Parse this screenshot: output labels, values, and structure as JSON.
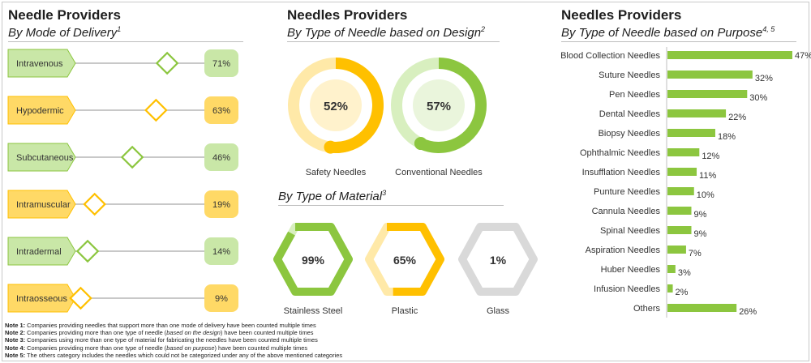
{
  "colors": {
    "green": "#8cc63f",
    "green_light": "#c9e7a7",
    "green_pale": "#d8efbf",
    "green_bg": "#eaf5dc",
    "yellow": "#ffc000",
    "yellow_light": "#ffd966",
    "yellow_pale": "#ffe9a8",
    "yellow_bg": "#fff2cc",
    "gray": "#d9d9d9",
    "gray_dark": "#bfbfbf",
    "line": "#a6a6a6",
    "text": "#333333"
  },
  "chart_data": [
    {
      "id": "delivery",
      "type": "slider-indicator",
      "title": "Needle Providers",
      "subtitle": "By Mode of Delivery",
      "subtitle_note": "1",
      "items": [
        {
          "label": "Intravenous",
          "value": 71,
          "value_label": "71%",
          "color": "green"
        },
        {
          "label": "Hypodermic",
          "value": 63,
          "value_label": "63%",
          "color": "yellow"
        },
        {
          "label": "Subcutaneous",
          "value": 46,
          "value_label": "46%",
          "color": "green"
        },
        {
          "label": "Intramuscular",
          "value": 19,
          "value_label": "19%",
          "color": "yellow"
        },
        {
          "label": "Intradermal",
          "value": 14,
          "value_label": "14%",
          "color": "green"
        },
        {
          "label": "Intraosseous",
          "value": 9,
          "value_label": "9%",
          "color": "yellow"
        }
      ]
    },
    {
      "id": "design",
      "type": "donut",
      "title": "Needles Providers",
      "subtitle": "By Type of Needle based on Design",
      "subtitle_note": "2",
      "items": [
        {
          "label": "Safety Needles",
          "value": 52,
          "value_label": "52%",
          "color": "yellow"
        },
        {
          "label": "Conventional Needles",
          "value": 57,
          "value_label": "57%",
          "color": "green"
        }
      ]
    },
    {
      "id": "material",
      "type": "hexagon",
      "subtitle": "By Type of Material",
      "subtitle_note": "3",
      "items": [
        {
          "label": "Stainless Steel",
          "value": 99,
          "value_label": "99%",
          "color": "green"
        },
        {
          "label": "Plastic",
          "value": 65,
          "value_label": "65%",
          "color": "yellow"
        },
        {
          "label": "Glass",
          "value": 1,
          "value_label": "1%",
          "color": "gray"
        }
      ]
    },
    {
      "id": "purpose",
      "type": "bar",
      "orientation": "horizontal",
      "title": "Needles Providers",
      "subtitle": "By Type of Needle based on Purpose",
      "subtitle_note": "4, 5",
      "xlim": [
        0,
        47
      ],
      "categories": [
        "Blood Collection Needles",
        "Suture Needles",
        "Pen Needles",
        "Dental Needles",
        "Biopsy Needles",
        "Ophthalmic Needles",
        "Insufflation Needles",
        "Punture Needles",
        "Cannula Needles",
        "Spinal Needles",
        "Aspiration Needles",
        "Huber Needles",
        "Infusion Needles",
        "Others"
      ],
      "values": [
        47,
        32,
        30,
        22,
        18,
        12,
        11,
        10,
        9,
        9,
        7,
        3,
        2,
        26
      ],
      "value_labels": [
        "47%",
        "32%",
        "30%",
        "22%",
        "18%",
        "12%",
        "11%",
        "10%",
        "9%",
        "9%",
        "7%",
        "3%",
        "2%",
        "26%"
      ]
    }
  ],
  "notes": [
    {
      "label": "Note 1:",
      "text": "Companies providing needles that support more than one mode of delivery have been counted multiple times"
    },
    {
      "label": "Note 2:",
      "text_before": "Companies providing more than one type of needle (",
      "emph": "based on the design",
      "text_after": ") have been counted multiple times"
    },
    {
      "label": "Note 3:",
      "text": "Companies using more than one type of material for fabricating the needles have been counted multiple times"
    },
    {
      "label": "Note 4:",
      "text_before": "Companies providing more than one type of needle (",
      "emph": "based on purpose",
      "text_after": ") have been counted multiple times"
    },
    {
      "label": "Note 5:",
      "text": "The others category includes the needles which could not be categorized under any of the above mentioned categories"
    }
  ]
}
